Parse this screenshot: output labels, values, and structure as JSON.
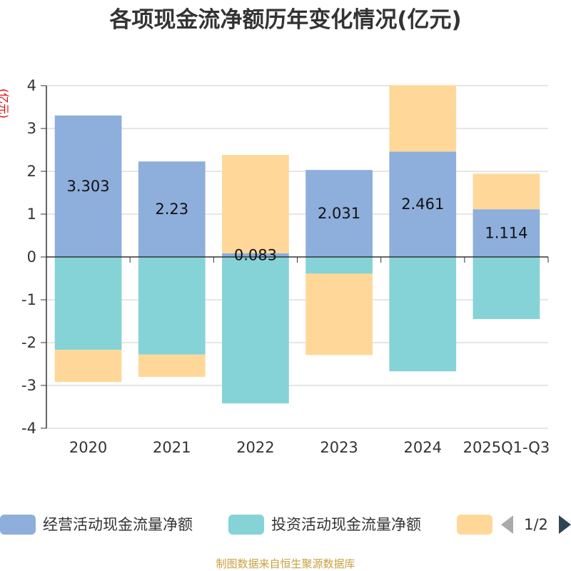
{
  "title": "各项现金流净额历年变化情况(亿元)",
  "unit_label": "(亿元)",
  "source": "制图数据来自恒生聚源数据库",
  "pager": "1/2",
  "chart_data": {
    "type": "bar",
    "stacked": true,
    "categories": [
      "2020",
      "2021",
      "2022",
      "2023",
      "2024",
      "2025Q1-Q3"
    ],
    "ylim": [
      -4,
      4
    ],
    "yticks": [
      4,
      3,
      2,
      1,
      0,
      -1,
      -2,
      -3,
      -4
    ],
    "grid": true,
    "legend_position": "bottom",
    "series": [
      {
        "name": "经营活动现金流量净额",
        "color": "#8eaedb",
        "values": [
          3.303,
          2.23,
          0.083,
          2.031,
          2.461,
          1.114
        ],
        "labels": [
          "3.303",
          "2.23",
          "0.083",
          "2.031",
          "2.461",
          "1.114"
        ]
      },
      {
        "name": "投资活动现金流量净额",
        "color": "#85d3d6",
        "values": [
          -2.17,
          -2.28,
          -3.42,
          -0.39,
          -2.67,
          -1.45
        ]
      },
      {
        "name": "",
        "color": "#ffd899",
        "values": [
          -0.75,
          -0.52,
          2.3,
          -1.9,
          1.55,
          0.83
        ]
      }
    ]
  }
}
